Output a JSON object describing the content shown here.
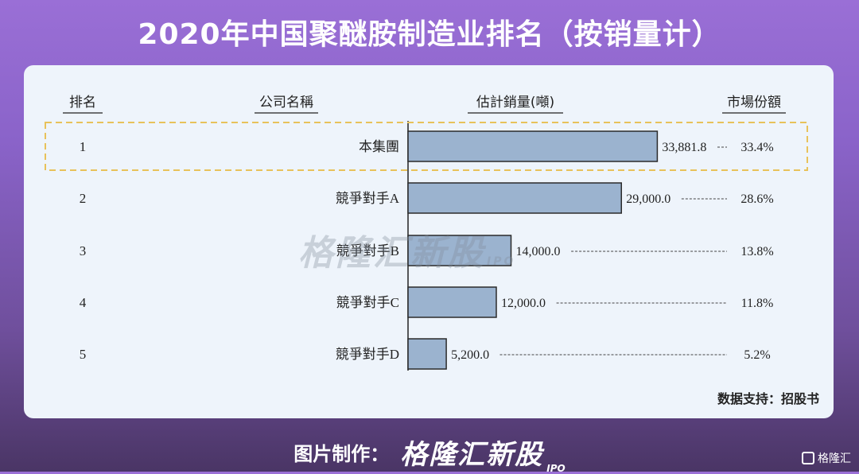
{
  "title": "2020年中国聚醚胺制造业排名（按销量计）",
  "headers": {
    "rank": "排名",
    "company": "公司名稱",
    "volume": "估計銷量(噸)",
    "share": "市場份額"
  },
  "source": "数据支持：招股书",
  "footer": {
    "label": "图片制作：",
    "brand": "格隆汇新股",
    "brand_suffix": "IPO"
  },
  "watermark": {
    "text": "格隆汇新股",
    "suffix": "IPO"
  },
  "corner_logo": "格隆汇",
  "chart_data": {
    "type": "bar",
    "orientation": "horizontal",
    "ranks": [
      "1",
      "2",
      "3",
      "4",
      "5"
    ],
    "categories": [
      "本集團",
      "競爭對手A",
      "競爭對手B",
      "競爭對手C",
      "競爭對手D"
    ],
    "values": [
      33881.8,
      29000.0,
      14000.0,
      12000.0,
      5200.0
    ],
    "value_labels": [
      "33,881.8",
      "29,000.0",
      "14,000.0",
      "12,000.0",
      "5,200.0"
    ],
    "shares": [
      "33.4%",
      "28.6%",
      "13.8%",
      "11.8%",
      "5.2%"
    ],
    "highlight_index": 0,
    "xlim": [
      0,
      40000
    ],
    "bar_color": "#9bb3cf",
    "bar_edge": "#2b2b2b",
    "highlight_color": "#e8c25a"
  }
}
